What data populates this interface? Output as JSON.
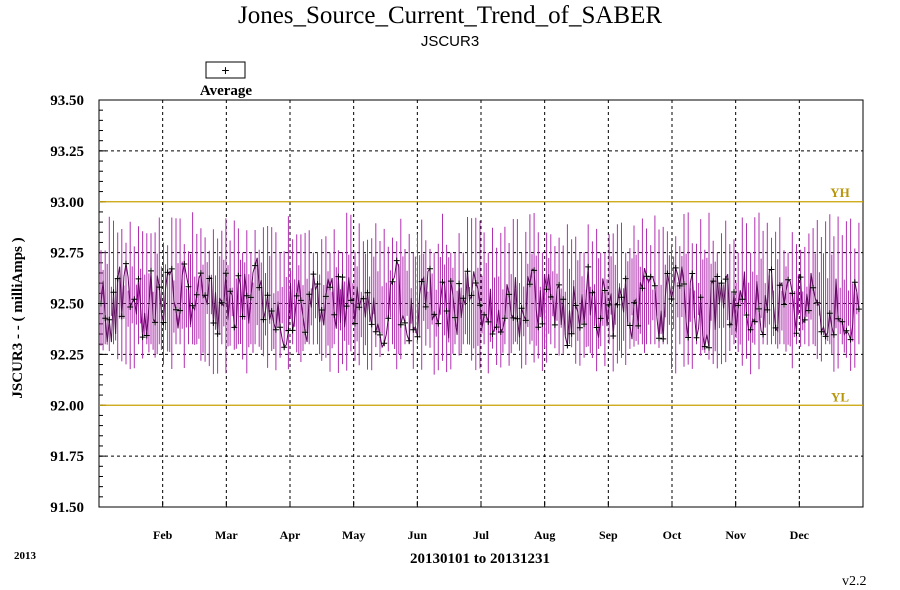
{
  "chart_data": {
    "type": "line",
    "title": "Jones_Source_Current_Trend_of_SABER",
    "subtitle": "JSCUR3",
    "xlabel": "20130101 to 20131231",
    "ylabel": "JSCUR3  - - ( milliAmps )",
    "ylim": [
      91.5,
      93.5
    ],
    "yticks": [
      "93.50",
      "93.25",
      "93.00",
      "92.75",
      "92.50",
      "92.25",
      "92.00",
      "91.75",
      "91.50"
    ],
    "months": [
      "Feb",
      "Mar",
      "Apr",
      "May",
      "Jun",
      "Jul",
      "Aug",
      "Sep",
      "Oct",
      "Nov",
      "Dec"
    ],
    "limits": [
      {
        "label": "YH",
        "value": 93.0
      },
      {
        "label": "YL",
        "value": 92.0
      }
    ],
    "series": [
      {
        "name": "Average",
        "mean": 92.5,
        "min_typical": 92.15,
        "max_typical": 92.95,
        "avg_range": [
          92.2,
          92.8
        ]
      }
    ],
    "grid": true,
    "legend_placement": "top-left",
    "colors": {
      "range": "#b030b0",
      "average": "#000000",
      "limit": "#c8a000"
    }
  },
  "footer": {
    "year": "2013",
    "version": "v2.2"
  },
  "legend": {
    "marker": "+",
    "label": "Average"
  }
}
